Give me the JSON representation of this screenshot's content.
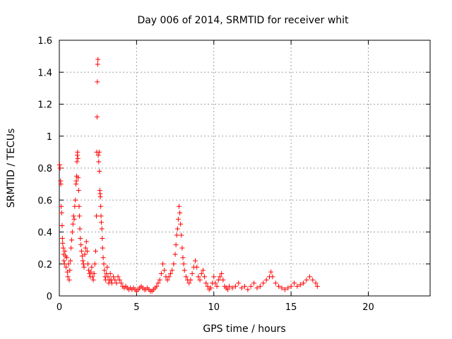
{
  "chart_data": {
    "type": "scatter",
    "title": "Day 006 of 2014, SRMTID for receiver whit",
    "xlabel": "GPS time / hours",
    "ylabel": "SRMTID / TECUs",
    "xlim": [
      0,
      24
    ],
    "ylim": [
      0,
      1.6
    ],
    "xticks": [
      0,
      5,
      10,
      15,
      20
    ],
    "yticks": [
      0,
      0.2,
      0.4,
      0.6,
      0.8,
      1,
      1.2,
      1.4,
      1.6
    ],
    "xtick_labels": [
      "0",
      "5",
      "10",
      "15",
      "20"
    ],
    "ytick_labels": [
      "0",
      "0.2",
      "0.4",
      "0.6",
      "0.8",
      "1",
      "1.2",
      "1.4",
      "1.6"
    ],
    "grid": true,
    "marker": "+",
    "color": "#ff0000",
    "series": [
      {
        "name": "SRMTID",
        "points": [
          [
            0.02,
            0.82
          ],
          [
            0.05,
            0.8
          ],
          [
            0.08,
            0.72
          ],
          [
            0.1,
            0.7
          ],
          [
            0.12,
            0.56
          ],
          [
            0.15,
            0.52
          ],
          [
            0.18,
            0.44
          ],
          [
            0.2,
            0.36
          ],
          [
            0.22,
            0.33
          ],
          [
            0.25,
            0.3
          ],
          [
            0.28,
            0.26
          ],
          [
            0.3,
            0.22
          ],
          [
            0.33,
            0.2
          ],
          [
            0.36,
            0.28
          ],
          [
            0.4,
            0.25
          ],
          [
            0.44,
            0.18
          ],
          [
            0.48,
            0.24
          ],
          [
            0.52,
            0.15
          ],
          [
            0.55,
            0.12
          ],
          [
            0.6,
            0.2
          ],
          [
            0.64,
            0.1
          ],
          [
            0.68,
            0.16
          ],
          [
            0.72,
            0.22
          ],
          [
            0.76,
            0.3
          ],
          [
            0.8,
            0.35
          ],
          [
            0.84,
            0.4
          ],
          [
            0.88,
            0.45
          ],
          [
            0.92,
            0.5
          ],
          [
            0.96,
            0.48
          ],
          [
            1.0,
            0.56
          ],
          [
            1.04,
            0.6
          ],
          [
            1.08,
            0.7
          ],
          [
            1.1,
            0.72
          ],
          [
            1.12,
            0.75
          ],
          [
            1.14,
            0.84
          ],
          [
            1.16,
            0.88
          ],
          [
            1.18,
            0.9
          ],
          [
            1.2,
            0.86
          ],
          [
            1.22,
            0.74
          ],
          [
            1.25,
            0.66
          ],
          [
            1.28,
            0.56
          ],
          [
            1.3,
            0.5
          ],
          [
            1.33,
            0.42
          ],
          [
            1.36,
            0.36
          ],
          [
            1.4,
            0.32
          ],
          [
            1.44,
            0.28
          ],
          [
            1.48,
            0.25
          ],
          [
            1.52,
            0.22
          ],
          [
            1.56,
            0.2
          ],
          [
            1.6,
            0.18
          ],
          [
            1.65,
            0.26
          ],
          [
            1.7,
            0.3
          ],
          [
            1.75,
            0.34
          ],
          [
            1.8,
            0.28
          ],
          [
            1.85,
            0.2
          ],
          [
            1.9,
            0.16
          ],
          [
            1.95,
            0.14
          ],
          [
            2.0,
            0.12
          ],
          [
            2.05,
            0.15
          ],
          [
            2.1,
            0.18
          ],
          [
            2.15,
            0.12
          ],
          [
            2.2,
            0.1
          ],
          [
            2.25,
            0.14
          ],
          [
            2.3,
            0.2
          ],
          [
            2.35,
            0.28
          ],
          [
            2.4,
            0.5
          ],
          [
            2.42,
            0.9
          ],
          [
            2.44,
            1.12
          ],
          [
            2.46,
            1.34
          ],
          [
            2.48,
            1.45
          ],
          [
            2.5,
            1.48
          ],
          [
            2.52,
            0.88
          ],
          [
            2.55,
            0.84
          ],
          [
            2.58,
            0.9
          ],
          [
            2.6,
            0.78
          ],
          [
            2.62,
            0.66
          ],
          [
            2.64,
            0.64
          ],
          [
            2.66,
            0.62
          ],
          [
            2.68,
            0.56
          ],
          [
            2.7,
            0.5
          ],
          [
            2.72,
            0.46
          ],
          [
            2.75,
            0.42
          ],
          [
            2.78,
            0.36
          ],
          [
            2.8,
            0.3
          ],
          [
            2.84,
            0.24
          ],
          [
            2.88,
            0.2
          ],
          [
            2.92,
            0.16
          ],
          [
            2.96,
            0.12
          ],
          [
            3.0,
            0.1
          ],
          [
            3.05,
            0.14
          ],
          [
            3.1,
            0.18
          ],
          [
            3.15,
            0.12
          ],
          [
            3.2,
            0.08
          ],
          [
            3.25,
            0.1
          ],
          [
            3.3,
            0.14
          ],
          [
            3.35,
            0.1
          ],
          [
            3.4,
            0.08
          ],
          [
            3.5,
            0.12
          ],
          [
            3.6,
            0.1
          ],
          [
            3.7,
            0.08
          ],
          [
            3.8,
            0.12
          ],
          [
            3.9,
            0.1
          ],
          [
            4.0,
            0.08
          ],
          [
            4.1,
            0.06
          ],
          [
            4.2,
            0.05
          ],
          [
            4.3,
            0.06
          ],
          [
            4.4,
            0.05
          ],
          [
            4.5,
            0.04
          ],
          [
            4.6,
            0.05
          ],
          [
            4.7,
            0.04
          ],
          [
            4.8,
            0.05
          ],
          [
            4.9,
            0.04
          ],
          [
            5.0,
            0.03
          ],
          [
            5.1,
            0.04
          ],
          [
            5.2,
            0.05
          ],
          [
            5.3,
            0.06
          ],
          [
            5.4,
            0.05
          ],
          [
            5.5,
            0.04
          ],
          [
            5.6,
            0.04
          ],
          [
            5.7,
            0.05
          ],
          [
            5.8,
            0.04
          ],
          [
            5.9,
            0.03
          ],
          [
            6.0,
            0.03
          ],
          [
            6.1,
            0.04
          ],
          [
            6.2,
            0.05
          ],
          [
            6.3,
            0.06
          ],
          [
            6.4,
            0.08
          ],
          [
            6.5,
            0.1
          ],
          [
            6.6,
            0.14
          ],
          [
            6.7,
            0.2
          ],
          [
            6.8,
            0.16
          ],
          [
            6.9,
            0.12
          ],
          [
            7.0,
            0.1
          ],
          [
            7.1,
            0.12
          ],
          [
            7.2,
            0.14
          ],
          [
            7.3,
            0.16
          ],
          [
            7.4,
            0.2
          ],
          [
            7.5,
            0.26
          ],
          [
            7.55,
            0.32
          ],
          [
            7.6,
            0.38
          ],
          [
            7.65,
            0.42
          ],
          [
            7.7,
            0.48
          ],
          [
            7.75,
            0.56
          ],
          [
            7.8,
            0.52
          ],
          [
            7.85,
            0.45
          ],
          [
            7.9,
            0.38
          ],
          [
            7.95,
            0.3
          ],
          [
            8.0,
            0.24
          ],
          [
            8.05,
            0.2
          ],
          [
            8.1,
            0.16
          ],
          [
            8.2,
            0.12
          ],
          [
            8.3,
            0.1
          ],
          [
            8.4,
            0.08
          ],
          [
            8.5,
            0.1
          ],
          [
            8.6,
            0.14
          ],
          [
            8.7,
            0.18
          ],
          [
            8.8,
            0.22
          ],
          [
            8.9,
            0.18
          ],
          [
            9.0,
            0.12
          ],
          [
            9.1,
            0.1
          ],
          [
            9.2,
            0.14
          ],
          [
            9.3,
            0.16
          ],
          [
            9.4,
            0.12
          ],
          [
            9.5,
            0.08
          ],
          [
            9.6,
            0.06
          ],
          [
            9.7,
            0.04
          ],
          [
            9.8,
            0.05
          ],
          [
            9.9,
            0.08
          ],
          [
            10.0,
            0.12
          ],
          [
            10.1,
            0.08
          ],
          [
            10.2,
            0.06
          ],
          [
            10.3,
            0.1
          ],
          [
            10.4,
            0.12
          ],
          [
            10.5,
            0.14
          ],
          [
            10.6,
            0.1
          ],
          [
            10.7,
            0.06
          ],
          [
            10.8,
            0.05
          ],
          [
            10.9,
            0.04
          ],
          [
            11.0,
            0.06
          ],
          [
            11.2,
            0.05
          ],
          [
            11.4,
            0.06
          ],
          [
            11.6,
            0.08
          ],
          [
            11.8,
            0.05
          ],
          [
            12.0,
            0.06
          ],
          [
            12.2,
            0.04
          ],
          [
            12.4,
            0.06
          ],
          [
            12.6,
            0.08
          ],
          [
            12.8,
            0.05
          ],
          [
            13.0,
            0.06
          ],
          [
            13.2,
            0.08
          ],
          [
            13.4,
            0.1
          ],
          [
            13.6,
            0.12
          ],
          [
            13.7,
            0.15
          ],
          [
            13.8,
            0.12
          ],
          [
            14.0,
            0.08
          ],
          [
            14.2,
            0.06
          ],
          [
            14.4,
            0.05
          ],
          [
            14.6,
            0.04
          ],
          [
            14.8,
            0.05
          ],
          [
            15.0,
            0.06
          ],
          [
            15.2,
            0.08
          ],
          [
            15.4,
            0.06
          ],
          [
            15.6,
            0.07
          ],
          [
            15.8,
            0.08
          ],
          [
            16.0,
            0.1
          ],
          [
            16.2,
            0.12
          ],
          [
            16.4,
            0.1
          ],
          [
            16.6,
            0.08
          ],
          [
            16.7,
            0.06
          ]
        ]
      }
    ]
  }
}
